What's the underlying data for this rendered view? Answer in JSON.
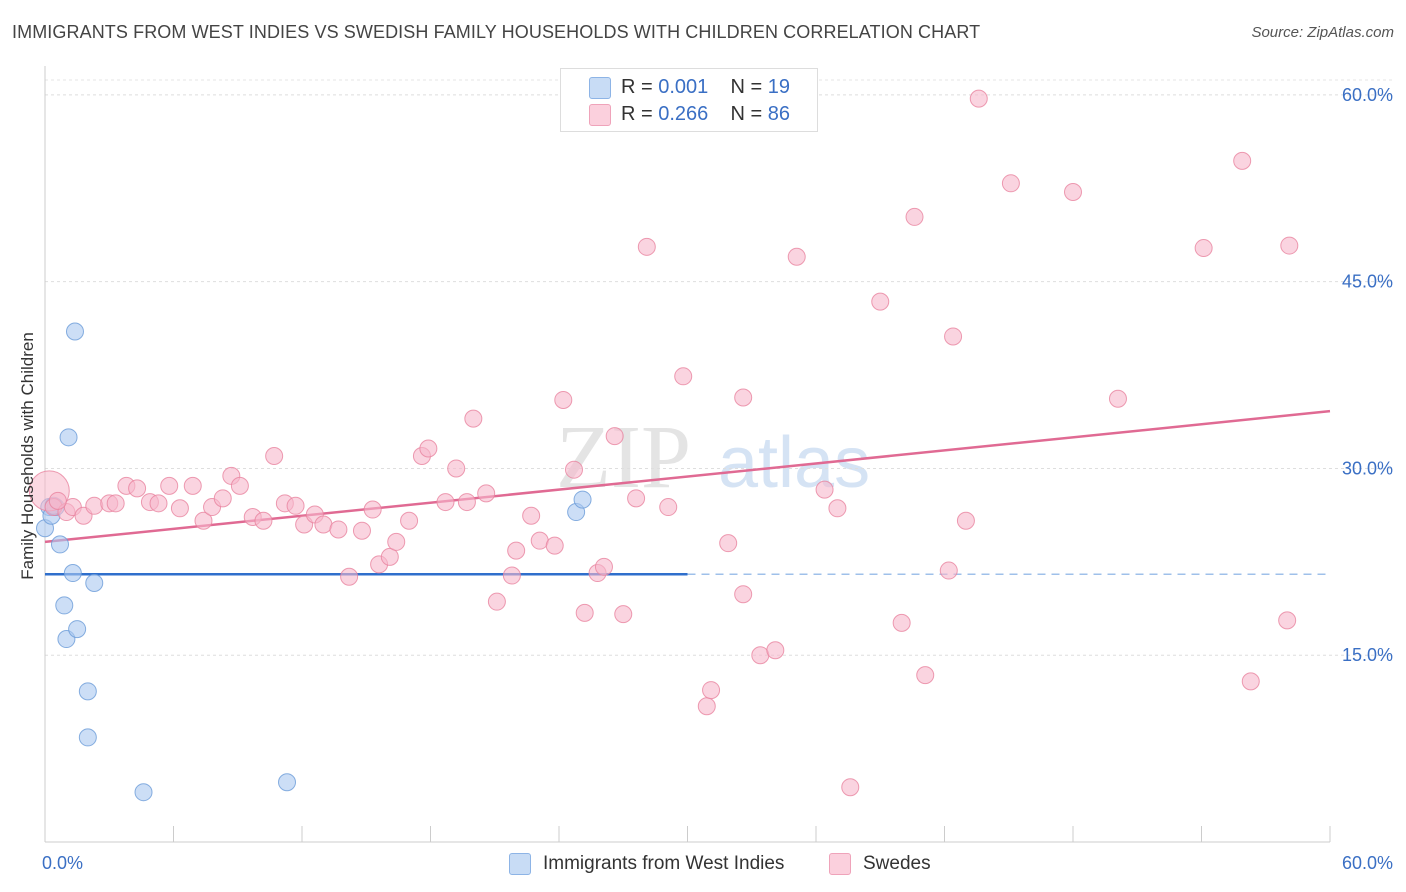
{
  "title": "IMMIGRANTS FROM WEST INDIES VS SWEDISH FAMILY HOUSEHOLDS WITH CHILDREN CORRELATION CHART",
  "source": "Source: ZipAtlas.com",
  "watermark": {
    "zip": "ZIP",
    "atlas": "atlas"
  },
  "legend_top": [
    {
      "r_label": "R =",
      "r_value": "0.001",
      "n_label": "N =",
      "n_value": "19",
      "color": "#aac8f0"
    },
    {
      "r_label": "R =",
      "r_value": "0.266",
      "n_label": "N =",
      "n_value": "86",
      "color": "#f7b8cb"
    }
  ],
  "chart_data": {
    "type": "scatter",
    "title": "IMMIGRANTS FROM WEST INDIES VS SWEDISH FAMILY HOUSEHOLDS WITH CHILDREN CORRELATION CHART",
    "xlabel": "",
    "ylabel": "Family Households with Children",
    "xlim": [
      0,
      60
    ],
    "ylim": [
      0,
      62
    ],
    "x_tick_labels": [
      "0.0%",
      "60.0%"
    ],
    "y_ticks": [
      15,
      30,
      45,
      60
    ],
    "y_tick_labels": [
      "15.0%",
      "30.0%",
      "45.0%",
      "60.0%"
    ],
    "grid": true,
    "legend": "bottom-center",
    "series": [
      {
        "name": "Immigrants from West Indies",
        "color": "#aac8f0",
        "stroke": "#6a9bd8",
        "points": [
          {
            "x": 0.0,
            "y": 25.2
          },
          {
            "x": 0.2,
            "y": 26.9
          },
          {
            "x": 0.3,
            "y": 26.2
          },
          {
            "x": 0.5,
            "y": 26.9
          },
          {
            "x": 0.7,
            "y": 23.9
          },
          {
            "x": 0.9,
            "y": 19.0
          },
          {
            "x": 1.0,
            "y": 16.3
          },
          {
            "x": 1.1,
            "y": 32.5
          },
          {
            "x": 1.3,
            "y": 21.6
          },
          {
            "x": 1.4,
            "y": 41.0
          },
          {
            "x": 1.5,
            "y": 17.1
          },
          {
            "x": 2.0,
            "y": 12.1
          },
          {
            "x": 2.0,
            "y": 8.4
          },
          {
            "x": 2.3,
            "y": 20.8
          },
          {
            "x": 4.6,
            "y": 4.0
          },
          {
            "x": 11.3,
            "y": 4.8
          },
          {
            "x": 24.8,
            "y": 26.5
          },
          {
            "x": 25.1,
            "y": 27.5
          },
          {
            "x": 0.4,
            "y": 27.0
          }
        ],
        "trend": {
          "x0": 0,
          "y0": 21.5,
          "x1": 30,
          "y1": 21.5,
          "dashed_to": 60
        }
      },
      {
        "name": "Swedes",
        "color": "#f7b8cb",
        "stroke": "#e8839f",
        "points": [
          {
            "x": 0.2,
            "y": 28.2
          },
          {
            "x": 0.4,
            "y": 26.9
          },
          {
            "x": 1.0,
            "y": 26.5
          },
          {
            "x": 1.3,
            "y": 26.9
          },
          {
            "x": 1.8,
            "y": 26.2
          },
          {
            "x": 2.3,
            "y": 27.0
          },
          {
            "x": 3.0,
            "y": 27.2
          },
          {
            "x": 3.3,
            "y": 27.2
          },
          {
            "x": 3.8,
            "y": 28.6
          },
          {
            "x": 4.3,
            "y": 28.4
          },
          {
            "x": 4.9,
            "y": 27.3
          },
          {
            "x": 5.3,
            "y": 27.2
          },
          {
            "x": 5.8,
            "y": 28.6
          },
          {
            "x": 6.3,
            "y": 26.8
          },
          {
            "x": 6.9,
            "y": 28.6
          },
          {
            "x": 7.4,
            "y": 25.8
          },
          {
            "x": 7.8,
            "y": 26.9
          },
          {
            "x": 8.3,
            "y": 27.6
          },
          {
            "x": 8.7,
            "y": 29.4
          },
          {
            "x": 9.1,
            "y": 28.6
          },
          {
            "x": 9.7,
            "y": 26.1
          },
          {
            "x": 10.2,
            "y": 25.8
          },
          {
            "x": 10.7,
            "y": 31.0
          },
          {
            "x": 11.2,
            "y": 27.2
          },
          {
            "x": 11.7,
            "y": 27.0
          },
          {
            "x": 12.1,
            "y": 25.5
          },
          {
            "x": 12.6,
            "y": 26.3
          },
          {
            "x": 13.0,
            "y": 25.5
          },
          {
            "x": 13.7,
            "y": 25.1
          },
          {
            "x": 14.2,
            "y": 21.3
          },
          {
            "x": 14.8,
            "y": 25.0
          },
          {
            "x": 15.3,
            "y": 26.7
          },
          {
            "x": 15.6,
            "y": 22.3
          },
          {
            "x": 16.1,
            "y": 22.9
          },
          {
            "x": 16.4,
            "y": 24.1
          },
          {
            "x": 17.0,
            "y": 25.8
          },
          {
            "x": 17.6,
            "y": 31.0
          },
          {
            "x": 17.9,
            "y": 31.6
          },
          {
            "x": 18.7,
            "y": 27.3
          },
          {
            "x": 19.2,
            "y": 30.0
          },
          {
            "x": 19.7,
            "y": 27.3
          },
          {
            "x": 20.0,
            "y": 34.0
          },
          {
            "x": 20.6,
            "y": 28.0
          },
          {
            "x": 21.1,
            "y": 19.3
          },
          {
            "x": 21.8,
            "y": 21.4
          },
          {
            "x": 22.0,
            "y": 23.4
          },
          {
            "x": 22.7,
            "y": 26.2
          },
          {
            "x": 23.1,
            "y": 24.2
          },
          {
            "x": 23.8,
            "y": 23.8
          },
          {
            "x": 24.2,
            "y": 35.5
          },
          {
            "x": 24.7,
            "y": 29.9
          },
          {
            "x": 25.2,
            "y": 18.4
          },
          {
            "x": 25.8,
            "y": 21.6
          },
          {
            "x": 26.1,
            "y": 22.1
          },
          {
            "x": 26.6,
            "y": 32.6
          },
          {
            "x": 27.0,
            "y": 18.3
          },
          {
            "x": 27.6,
            "y": 27.6
          },
          {
            "x": 28.1,
            "y": 47.8
          },
          {
            "x": 29.1,
            "y": 26.9
          },
          {
            "x": 29.8,
            "y": 37.4
          },
          {
            "x": 30.9,
            "y": 10.9
          },
          {
            "x": 31.1,
            "y": 12.2
          },
          {
            "x": 31.9,
            "y": 24.0
          },
          {
            "x": 32.6,
            "y": 19.9
          },
          {
            "x": 32.6,
            "y": 35.7
          },
          {
            "x": 33.4,
            "y": 15.0
          },
          {
            "x": 34.1,
            "y": 15.4
          },
          {
            "x": 35.1,
            "y": 47.0
          },
          {
            "x": 36.4,
            "y": 28.3
          },
          {
            "x": 37.0,
            "y": 26.8
          },
          {
            "x": 37.6,
            "y": 4.4
          },
          {
            "x": 39.0,
            "y": 43.4
          },
          {
            "x": 40.0,
            "y": 17.6
          },
          {
            "x": 40.6,
            "y": 50.2
          },
          {
            "x": 41.1,
            "y": 13.4
          },
          {
            "x": 42.2,
            "y": 21.8
          },
          {
            "x": 42.4,
            "y": 40.6
          },
          {
            "x": 43.0,
            "y": 25.8
          },
          {
            "x": 43.6,
            "y": 59.7
          },
          {
            "x": 45.1,
            "y": 52.9
          },
          {
            "x": 48.0,
            "y": 52.2
          },
          {
            "x": 50.1,
            "y": 35.6
          },
          {
            "x": 54.1,
            "y": 47.7
          },
          {
            "x": 55.9,
            "y": 54.7
          },
          {
            "x": 56.3,
            "y": 12.9
          },
          {
            "x": 58.1,
            "y": 47.9
          },
          {
            "x": 58.0,
            "y": 17.8
          },
          {
            "x": 0.6,
            "y": 27.4
          }
        ],
        "trend": {
          "x0": 0,
          "y0": 24.1,
          "x1": 60,
          "y1": 34.6
        }
      }
    ]
  },
  "legend_bottom": [
    {
      "label": "Immigrants from West Indies",
      "color": "#aac8f0"
    },
    {
      "label": "Swedes",
      "color": "#f7b8cb"
    }
  ]
}
